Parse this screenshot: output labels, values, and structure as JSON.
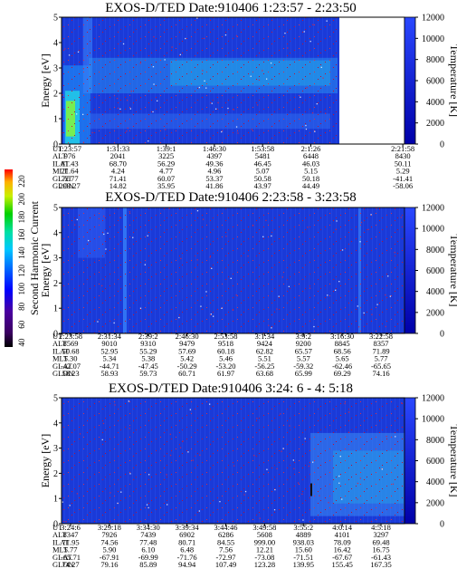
{
  "colors": {
    "background_plasma": "#1a3ad8",
    "noise_red": "#c8102e",
    "band_cyan": "#22c8e8",
    "band_green": "#7cf04a",
    "temp_scale_top": "#2040ff",
    "temp_scale_bottom": "#0000a0"
  },
  "color_scale_left": {
    "label": "Second Harmonic Current",
    "ticks": [
      "220",
      "200",
      "180",
      "160",
      "140",
      "120",
      "100",
      "80",
      "60",
      "40"
    ]
  },
  "chart_data": [
    {
      "type": "heatmap",
      "title": "EXOS-D/TED   Date:910406   1:23:57 - 2:23:50",
      "ylabel": "Energy [eV]",
      "ylabel_right": "Temperature [K]",
      "ylim": [
        0,
        5
      ],
      "ylim_right": [
        0,
        12000
      ],
      "yticks": [
        "0",
        "1",
        "2",
        "3",
        "4",
        "5"
      ],
      "yticks_right": [
        "0",
        "2000",
        "4000",
        "6000",
        "8000",
        "10000",
        "12000"
      ],
      "data_ends_fraction": 0.81,
      "orbit_labels": [
        "UT",
        "ALT",
        "ILAT",
        "MLT",
        "GLAT",
        "GLON"
      ],
      "orbit_columns": [
        [
          "1:23:57",
          "976",
          "81.43",
          "21.64",
          "72.77",
          "293.27"
        ],
        [
          "1:31:33",
          "2041",
          "68.70",
          "4.24",
          "71.41",
          "14.82"
        ],
        [
          "1:39:1",
          "3225",
          "56.29",
          "4.77",
          "60.07",
          "35.95"
        ],
        [
          "1:46:30",
          "4397",
          "49.36",
          "4.96",
          "53.37",
          "41.86"
        ],
        [
          "1:53:58",
          "5481",
          "46.45",
          "5.07",
          "50.58",
          "43.97"
        ],
        [
          "2:1:26",
          "6448",
          "46.03",
          "5.15",
          "50.18",
          "44.49"
        ],
        [
          "2:21:58",
          "8430",
          "50.11",
          "5.29",
          "-41.41",
          "-58.06"
        ]
      ]
    },
    {
      "type": "heatmap",
      "title": "EXOS-D/TED   Date:910406   2:23:58 - 3:23:58",
      "ylabel": "Energy [eV]",
      "ylabel_right": "Temperature [K]",
      "ylim": [
        0,
        5
      ],
      "ylim_right": [
        0,
        12000
      ],
      "yticks": [
        "0",
        "1",
        "2",
        "3",
        "4",
        "5"
      ],
      "yticks_right": [
        "0",
        "2000",
        "4000",
        "6000",
        "8000",
        "10000",
        "12000"
      ],
      "data_ends_fraction": 1.0,
      "orbit_labels": [
        "UT",
        "ALT",
        "ILAT",
        "MLT",
        "GLAT",
        "GLON"
      ],
      "orbit_columns": [
        [
          "2:23:58",
          "8569",
          "50.68",
          "5.30",
          "-42.07",
          "58.23"
        ],
        [
          "2:31:34",
          "9010",
          "52.95",
          "5.34",
          "-44.71",
          "58.93"
        ],
        [
          "2:39:2",
          "9310",
          "55.29",
          "5.38",
          "-47.45",
          "59.73"
        ],
        [
          "2:46:30",
          "9479",
          "57.69",
          "5.42",
          "-50.29",
          "60.71"
        ],
        [
          "2:53:58",
          "9518",
          "60.18",
          "5.46",
          "-53.20",
          "61.97"
        ],
        [
          "3:1:34",
          "9424",
          "62.82",
          "5.51",
          "-56.25",
          "63.68"
        ],
        [
          "3:9:2",
          "9200",
          "65.57",
          "5.57",
          "-59.32",
          "65.99"
        ],
        [
          "3:16:30",
          "8845",
          "68.56",
          "5.65",
          "-62.46",
          "69.29"
        ],
        [
          "3:22:58",
          "8357",
          "71.89",
          "5.77",
          "-65.65",
          "74.16"
        ]
      ]
    },
    {
      "type": "heatmap",
      "title": "EXOS-D/TED   Date:910406   3:24: 6 - 4: 5:18",
      "ylabel": "Energy [eV]",
      "ylabel_right": "Temperature [K]",
      "ylim": [
        0,
        5
      ],
      "ylim_right": [
        0,
        12000
      ],
      "yticks": [
        "0",
        "1",
        "2",
        "3",
        "4",
        "5"
      ],
      "yticks_right": [
        "0",
        "2000",
        "4000",
        "6000",
        "8000",
        "10000",
        "12000"
      ],
      "data_ends_fraction": 1.0,
      "orbit_labels": [
        "UT",
        "ALT",
        "ILAT",
        "MLT",
        "GLAT",
        "GLON"
      ],
      "orbit_columns": [
        [
          "3:24:6",
          "8347",
          "71.95",
          "5.77",
          "-65.71",
          "74.27"
        ],
        [
          "3:29:18",
          "7926",
          "74.56",
          "5.90",
          "-67.91",
          "79.16"
        ],
        [
          "3:34:30",
          "7439",
          "77.48",
          "6.10",
          "-69.99",
          "85.89"
        ],
        [
          "3:39:34",
          "6902",
          "80.71",
          "6.48",
          "-71.76",
          "94.94"
        ],
        [
          "3:44:46",
          "6286",
          "84.55",
          "7.56",
          "-72.97",
          "107.49"
        ],
        [
          "3:49:58",
          "5608",
          "999.00",
          "12.21",
          "-73.08",
          "123.28"
        ],
        [
          "3:55:2",
          "4889",
          "938.03",
          "15.60",
          "-71.51",
          "139.95"
        ],
        [
          "4:0:14",
          "4101",
          "78.09",
          "16.42",
          "-67.67",
          "155.45"
        ],
        [
          "4:5:18",
          "3297",
          "69.48",
          "16.75",
          "-61.43",
          "167.35"
        ]
      ]
    }
  ]
}
